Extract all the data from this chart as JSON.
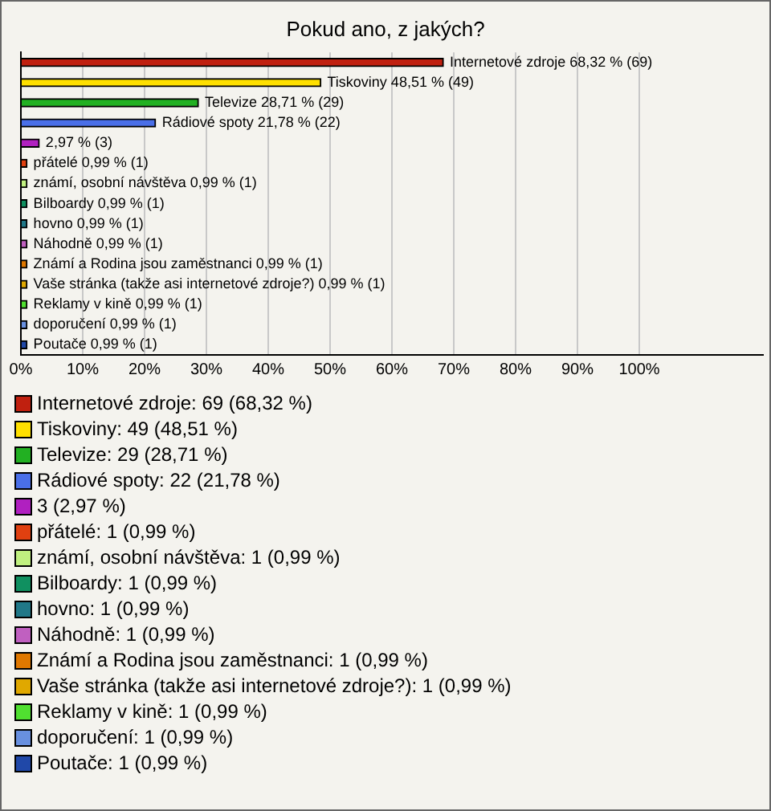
{
  "chart_data": {
    "type": "bar",
    "orientation": "horizontal",
    "title": "Pokud ano, z jakých?",
    "categories": [
      "Internetové zdroje",
      "Tiskoviny",
      "Televize",
      "Rádiové spoty",
      null,
      "přátelé",
      "známí, osobní návštěva",
      "Bilboardy",
      "hovno",
      "Náhodně",
      "Známí a Rodina jsou zaměstnanci",
      "Vaše stránka (takže asi internetové zdroje?)",
      "Reklamy v kině",
      "doporučení",
      "Poutače"
    ],
    "values": [
      68.32,
      48.51,
      28.71,
      21.78,
      2.97,
      0.99,
      0.99,
      0.99,
      0.99,
      0.99,
      0.99,
      0.99,
      0.99,
      0.99,
      0.99
    ],
    "value_labels": [
      "68,32 % (69)",
      "48,51 % (49)",
      "28,71 % (29)",
      "21,78 % (22)",
      "2,97 % (3)",
      "0,99 % (1)",
      "0,99 % (1)",
      "0,99 % (1)",
      "0,99 % (1)",
      "0,99 % (1)",
      "0,99 % (1)",
      "0,99 % (1)",
      "0,99 % (1)",
      "0,99 % (1)",
      "0,99 % (1)"
    ],
    "colors": [
      "#c0200f",
      "#ffe000",
      "#22b022",
      "#4a6fe8",
      "#b020c0",
      "#e04010",
      "#c0f080",
      "#109060",
      "#207888",
      "#c060c0",
      "#e07800",
      "#e0a800",
      "#50e030",
      "#6890e0",
      "#2048a8"
    ],
    "xlim": [
      0,
      120
    ],
    "xticks": [
      {
        "value": 0,
        "label": "0%"
      },
      {
        "value": 10,
        "label": "10%"
      },
      {
        "value": 20,
        "label": "20%"
      },
      {
        "value": 30,
        "label": "30%"
      },
      {
        "value": 40,
        "label": "40%"
      },
      {
        "value": 50,
        "label": "50%"
      },
      {
        "value": 60,
        "label": "60%"
      },
      {
        "value": 70,
        "label": "70%"
      },
      {
        "value": 80,
        "label": "80%"
      },
      {
        "value": 90,
        "label": "90%"
      },
      {
        "value": 100,
        "label": "100%"
      }
    ],
    "grid": "x",
    "annotations": [
      "Internetové zdroje: 69 (68,32 %)",
      "Tiskoviny: 49 (48,51 %)",
      "Televize: 29 (28,71 %)",
      "Rádiové spoty: 22 (21,78 %)",
      "3 (2,97 %)",
      "přátelé: 1 (0,99 %)",
      "známí, osobní návštěva: 1 (0,99 %)",
      "Bilboardy: 1 (0,99 %)",
      "hovno: 1 (0,99 %)",
      "Náhodně: 1 (0,99 %)",
      "Známí a Rodina jsou zaměstnanci: 1 (0,99 %)",
      "Vaše stránka (takže asi internetové zdroje?): 1 (0,99 %)",
      "Reklamy v kině: 1 (0,99 %)",
      "doporučení: 1 (0,99 %)",
      "Poutače: 1 (0,99 %)"
    ]
  }
}
